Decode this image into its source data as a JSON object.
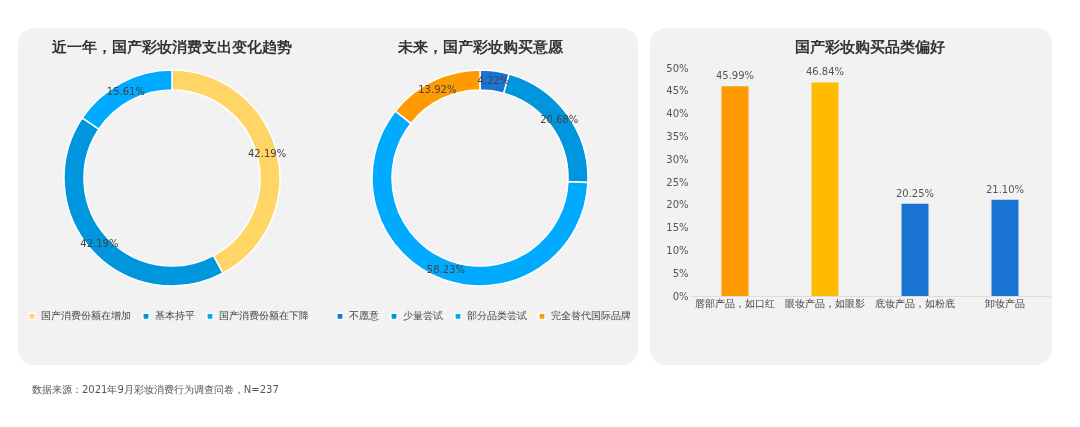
{
  "chart_data": [
    {
      "type": "donut",
      "title": "近一年，国产彩妆消费支出变化趋势",
      "categories": [
        "国产消费份额在增加",
        "基本持平",
        "国产消费份额在下降"
      ],
      "values": [
        42.19,
        42.19,
        15.61
      ],
      "value_labels": [
        "42.19%",
        "42.19%",
        "15.61%"
      ],
      "colors": [
        "#ffd566",
        "#0096de",
        "#00aaff"
      ],
      "legend": "bottom",
      "annotations": [
        "数据来源：2021年9月彩妆消费行为调查问卷，N=237"
      ]
    },
    {
      "type": "donut",
      "title": "未来，国产彩妆购买意愿",
      "categories": [
        "不愿意",
        "少量尝试",
        "部分品类尝试",
        "完全替代国际品牌"
      ],
      "values": [
        4.22,
        20.68,
        58.23,
        13.92
      ],
      "value_labels": [
        "4.22%",
        "20.68%",
        "58.23%",
        "13.92%"
      ],
      "colors": [
        "#1a75d2",
        "#0096de",
        "#00aaff",
        "#ff9a00"
      ],
      "legend": "bottom"
    },
    {
      "type": "bar",
      "title": "国产彩妆购买品类偏好",
      "categories": [
        "唇部产品，如口红",
        "眼妆产品，如眼影",
        "底妆产品，如粉底",
        "卸妆产品"
      ],
      "values": [
        45.99,
        46.84,
        20.25,
        21.1
      ],
      "value_labels": [
        "45.99%",
        "46.84%",
        "20.25%",
        "21.10%"
      ],
      "colors": [
        "#ff9a00",
        "#ffbb00",
        "#1a75d2",
        "#1a75d2"
      ],
      "ylim": [
        0,
        50
      ],
      "yticks": [
        {
          "value": 0,
          "label": "0%"
        },
        {
          "value": 5,
          "label": "5%"
        },
        {
          "value": 10,
          "label": "10%"
        },
        {
          "value": 15,
          "label": "15%"
        },
        {
          "value": 20,
          "label": "20%"
        },
        {
          "value": 25,
          "label": "25%"
        },
        {
          "value": 30,
          "label": "30%"
        },
        {
          "value": 35,
          "label": "35%"
        },
        {
          "value": 40,
          "label": "40%"
        },
        {
          "value": 45,
          "label": "45%"
        },
        {
          "value": 50,
          "label": "50%"
        }
      ],
      "grid": false,
      "legend": false
    }
  ]
}
